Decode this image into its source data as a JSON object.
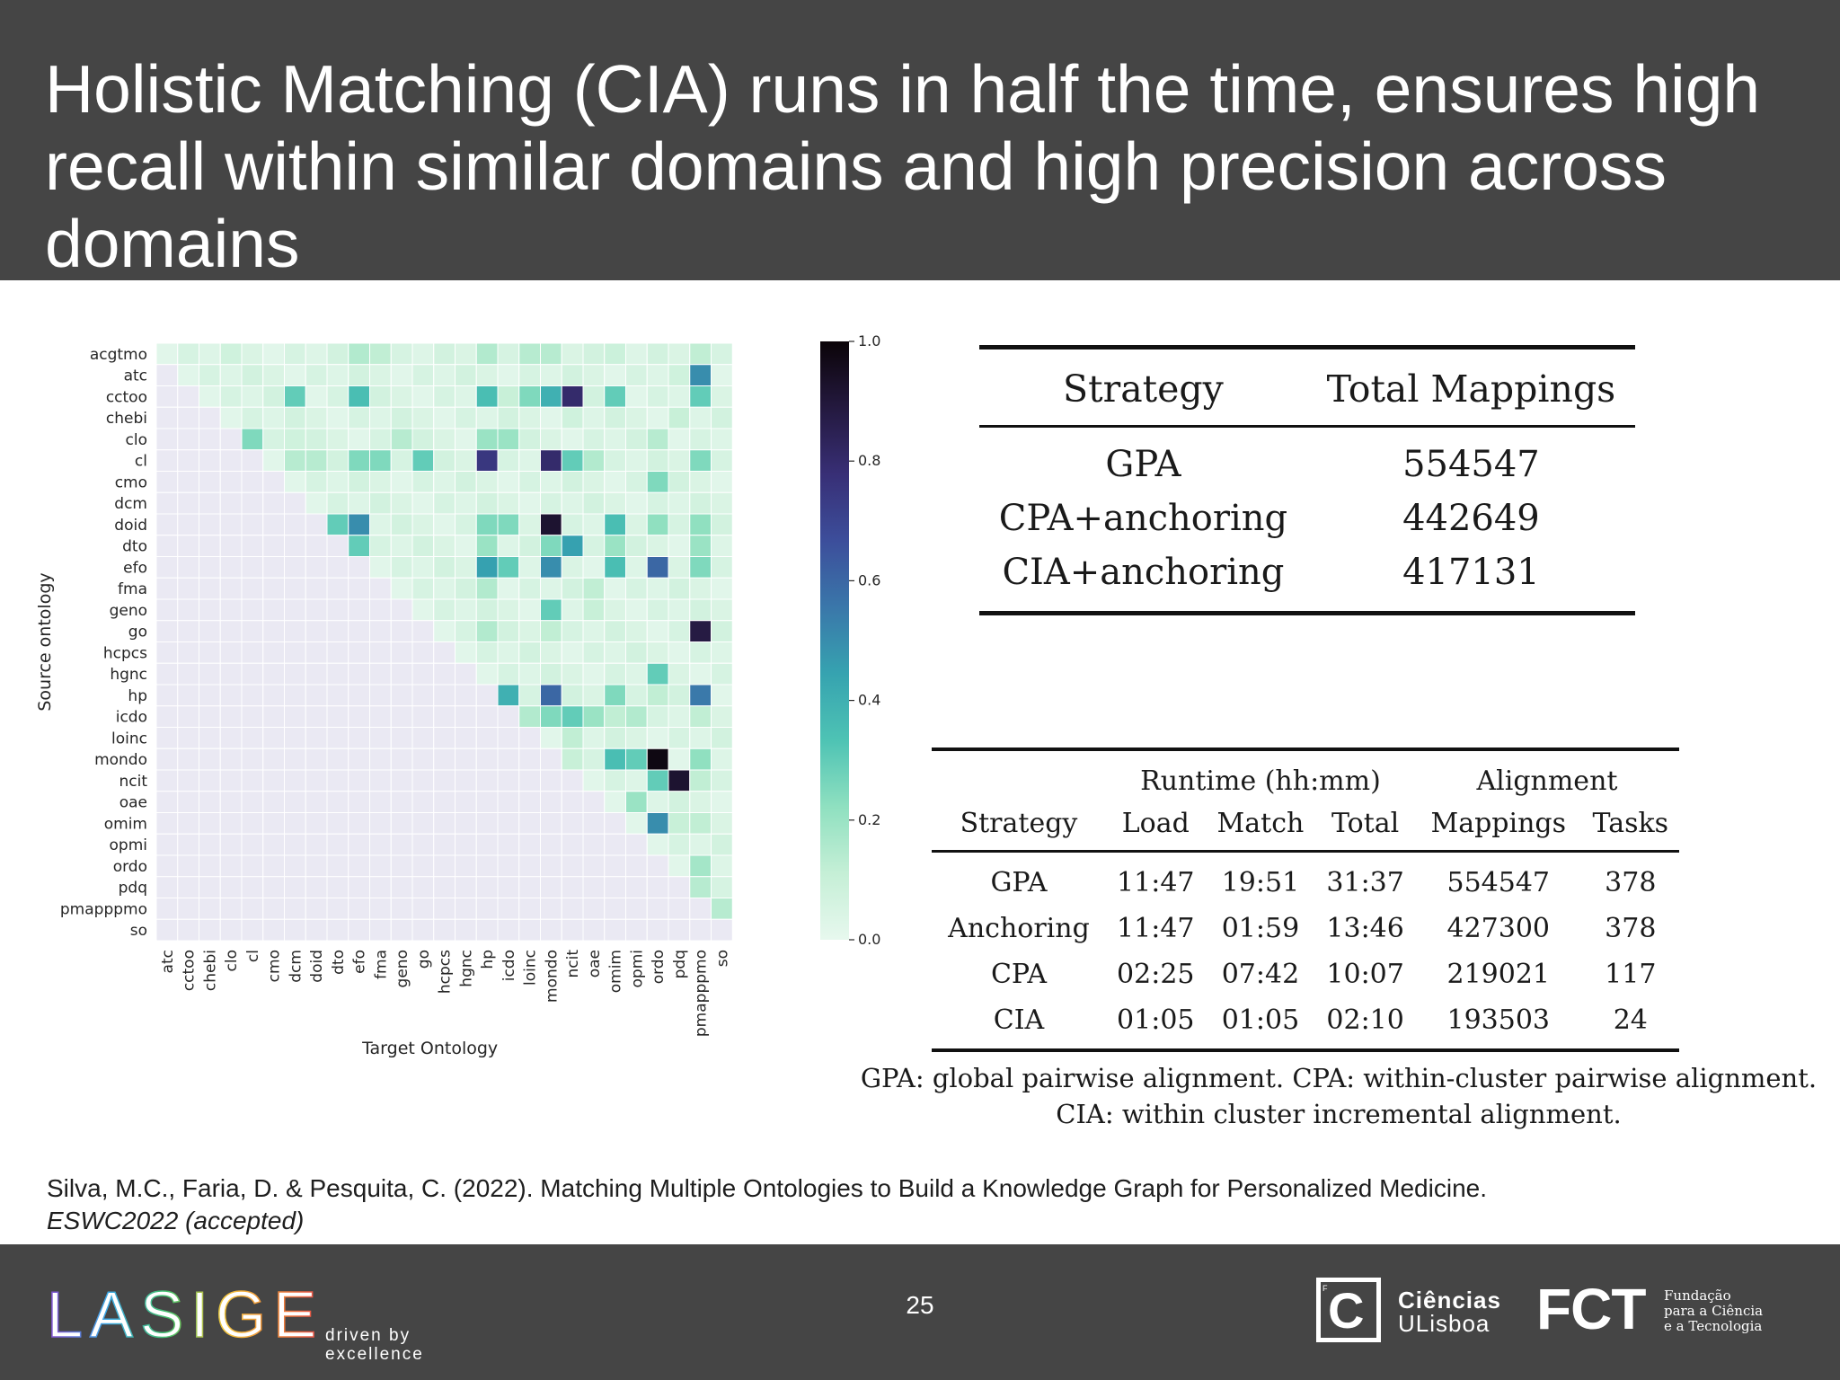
{
  "slide": {
    "title": "Holistic Matching (CIA) runs in half the time, ensures high recall within similar domains and high precision across domains",
    "page_number": "25"
  },
  "heatmap": {
    "type": "heatmap",
    "ylabel": "Source ontology",
    "xlabel": "Target Ontology",
    "rows": [
      "acgtmo",
      "atc",
      "cctoo",
      "chebi",
      "clo",
      "cl",
      "cmo",
      "dcm",
      "doid",
      "dto",
      "efo",
      "fma",
      "geno",
      "go",
      "hcpcs",
      "hgnc",
      "hp",
      "icdo",
      "loinc",
      "mondo",
      "ncit",
      "oae",
      "omim",
      "opmi",
      "ordo",
      "pdq",
      "pmapppmo",
      "so"
    ],
    "cols": [
      "atc",
      "cctoo",
      "chebi",
      "clo",
      "cl",
      "cmo",
      "dcm",
      "doid",
      "dto",
      "efo",
      "fma",
      "geno",
      "go",
      "hcpcs",
      "hgnc",
      "hp",
      "icdo",
      "loinc",
      "mondo",
      "ncit",
      "oae",
      "omim",
      "opmi",
      "ordo",
      "pdq",
      "pmapppmo",
      "so"
    ],
    "colorbar": {
      "min": 0.0,
      "max": 1.0,
      "ticks": [
        "0.0",
        "0.2",
        "0.4",
        "0.6",
        "0.8",
        "1.0"
      ]
    },
    "colormap": [
      "#e7f8ee",
      "#c5efd6",
      "#8fe0c0",
      "#4ec3b4",
      "#36a3b0",
      "#3a77aa",
      "#3c4e9b",
      "#382f76",
      "#24193f",
      "#0b0408"
    ],
    "empty_color": "#eae9f3",
    "highlights": [
      {
        "row": "acgtmo",
        "col": "efo",
        "value": 0.15
      },
      {
        "row": "acgtmo",
        "col": "fma",
        "value": 0.12
      },
      {
        "row": "acgtmo",
        "col": "hp",
        "value": 0.15
      },
      {
        "row": "acgtmo",
        "col": "loinc",
        "value": 0.14
      },
      {
        "row": "acgtmo",
        "col": "mondo",
        "value": 0.14
      },
      {
        "row": "acgtmo",
        "col": "clo",
        "value": 0.08
      },
      {
        "row": "acgtmo",
        "col": "omim",
        "value": 0.09
      },
      {
        "row": "acgtmo",
        "col": "oae",
        "value": 0.07
      },
      {
        "row": "acgtmo",
        "col": "pmapppmo",
        "value": 0.12
      },
      {
        "row": "atc",
        "col": "pmapppmo",
        "value": 0.5
      },
      {
        "row": "atc",
        "col": "pdq",
        "value": 0.08
      },
      {
        "row": "cctoo",
        "col": "dcm",
        "value": 0.3
      },
      {
        "row": "cctoo",
        "col": "efo",
        "value": 0.35
      },
      {
        "row": "cctoo",
        "col": "hp",
        "value": 0.35
      },
      {
        "row": "cctoo",
        "col": "loinc",
        "value": 0.25
      },
      {
        "row": "cctoo",
        "col": "mondo",
        "value": 0.4
      },
      {
        "row": "cctoo",
        "col": "ncit",
        "value": 0.8
      },
      {
        "row": "cctoo",
        "col": "omim",
        "value": 0.3
      },
      {
        "row": "cctoo",
        "col": "pmapppmo",
        "value": 0.3
      },
      {
        "row": "cctoo",
        "col": "icdo",
        "value": 0.1
      },
      {
        "row": "chebi",
        "col": "ncit",
        "value": 0.08
      },
      {
        "row": "chebi",
        "col": "pdq",
        "value": 0.1
      },
      {
        "row": "clo",
        "col": "cl",
        "value": 0.25
      },
      {
        "row": "clo",
        "col": "hp",
        "value": 0.2
      },
      {
        "row": "clo",
        "col": "icdo",
        "value": 0.2
      },
      {
        "row": "clo",
        "col": "geno",
        "value": 0.14
      },
      {
        "row": "clo",
        "col": "ordo",
        "value": 0.14
      },
      {
        "row": "clo",
        "col": "dcm",
        "value": 0.08
      },
      {
        "row": "cl",
        "col": "efo",
        "value": 0.25
      },
      {
        "row": "cl",
        "col": "fma",
        "value": 0.25
      },
      {
        "row": "cl",
        "col": "go",
        "value": 0.3
      },
      {
        "row": "cl",
        "col": "hp",
        "value": 0.75
      },
      {
        "row": "cl",
        "col": "mondo",
        "value": 0.8
      },
      {
        "row": "cl",
        "col": "ncit",
        "value": 0.3
      },
      {
        "row": "cl",
        "col": "oae",
        "value": 0.15
      },
      {
        "row": "cl",
        "col": "pmapppmo",
        "value": 0.25
      },
      {
        "row": "cl",
        "col": "dcm",
        "value": 0.14
      },
      {
        "row": "cl",
        "col": "doid",
        "value": 0.14
      },
      {
        "row": "cmo",
        "col": "ordo",
        "value": 0.25
      },
      {
        "row": "doid",
        "col": "dto",
        "value": 0.3
      },
      {
        "row": "doid",
        "col": "efo",
        "value": 0.5
      },
      {
        "row": "doid",
        "col": "hp",
        "value": 0.25
      },
      {
        "row": "doid",
        "col": "icdo",
        "value": 0.25
      },
      {
        "row": "doid",
        "col": "mondo",
        "value": 0.92
      },
      {
        "row": "doid",
        "col": "omim",
        "value": 0.35
      },
      {
        "row": "doid",
        "col": "ordo",
        "value": 0.22
      },
      {
        "row": "doid",
        "col": "pmapppmo",
        "value": 0.22
      },
      {
        "row": "dto",
        "col": "efo",
        "value": 0.3
      },
      {
        "row": "dto",
        "col": "hp",
        "value": 0.2
      },
      {
        "row": "dto",
        "col": "mondo",
        "value": 0.25
      },
      {
        "row": "dto",
        "col": "ncit",
        "value": 0.45
      },
      {
        "row": "dto",
        "col": "omim",
        "value": 0.2
      },
      {
        "row": "dto",
        "col": "pmapppmo",
        "value": 0.2
      },
      {
        "row": "efo",
        "col": "hp",
        "value": 0.45
      },
      {
        "row": "efo",
        "col": "icdo",
        "value": 0.3
      },
      {
        "row": "efo",
        "col": "mondo",
        "value": 0.5
      },
      {
        "row": "efo",
        "col": "omim",
        "value": 0.35
      },
      {
        "row": "efo",
        "col": "ordo",
        "value": 0.6
      },
      {
        "row": "efo",
        "col": "pmapppmo",
        "value": 0.25
      },
      {
        "row": "fma",
        "col": "hp",
        "value": 0.15
      },
      {
        "row": "fma",
        "col": "oae",
        "value": 0.12
      },
      {
        "row": "geno",
        "col": "mondo",
        "value": 0.3
      },
      {
        "row": "geno",
        "col": "oae",
        "value": 0.1
      },
      {
        "row": "go",
        "col": "pmapppmo",
        "value": 0.88
      },
      {
        "row": "go",
        "col": "hp",
        "value": 0.15
      },
      {
        "row": "go",
        "col": "mondo",
        "value": 0.12
      },
      {
        "row": "hgnc",
        "col": "ordo",
        "value": 0.3
      },
      {
        "row": "hp",
        "col": "icdo",
        "value": 0.4
      },
      {
        "row": "hp",
        "col": "mondo",
        "value": 0.6
      },
      {
        "row": "hp",
        "col": "omim",
        "value": 0.25
      },
      {
        "row": "hp",
        "col": "pmapppmo",
        "value": 0.55
      },
      {
        "row": "hp",
        "col": "ordo",
        "value": 0.12
      },
      {
        "row": "icdo",
        "col": "mondo",
        "value": 0.25
      },
      {
        "row": "icdo",
        "col": "ncit",
        "value": 0.3
      },
      {
        "row": "icdo",
        "col": "oae",
        "value": 0.2
      },
      {
        "row": "icdo",
        "col": "loinc",
        "value": 0.15
      },
      {
        "row": "icdo",
        "col": "omim",
        "value": 0.12
      },
      {
        "row": "icdo",
        "col": "opmi",
        "value": 0.15
      },
      {
        "row": "icdo",
        "col": "pmapppmo",
        "value": 0.12
      },
      {
        "row": "loinc",
        "col": "ncit",
        "value": 0.12
      },
      {
        "row": "mondo",
        "col": "omim",
        "value": 0.35
      },
      {
        "row": "mondo",
        "col": "opmi",
        "value": 0.3
      },
      {
        "row": "mondo",
        "col": "ordo",
        "value": 0.98
      },
      {
        "row": "mondo",
        "col": "pmapppmo",
        "value": 0.22
      },
      {
        "row": "mondo",
        "col": "ncit",
        "value": 0.1
      },
      {
        "row": "ncit",
        "col": "ordo",
        "value": 0.3
      },
      {
        "row": "ncit",
        "col": "pdq",
        "value": 0.92
      },
      {
        "row": "ncit",
        "col": "pmapppmo",
        "value": 0.12
      },
      {
        "row": "oae",
        "col": "opmi",
        "value": 0.2
      },
      {
        "row": "omim",
        "col": "ordo",
        "value": 0.5
      },
      {
        "row": "omim",
        "col": "pmapppmo",
        "value": 0.12
      },
      {
        "row": "omim",
        "col": "pdq",
        "value": 0.1
      },
      {
        "row": "ordo",
        "col": "pmapppmo",
        "value": 0.18
      },
      {
        "row": "pdq",
        "col": "pmapppmo",
        "value": 0.14
      },
      {
        "row": "pmapppmo",
        "col": "so",
        "value": 0.14
      }
    ]
  },
  "table1": {
    "headers": [
      "Strategy",
      "Total Mappings"
    ],
    "rows": [
      [
        "GPA",
        "554547"
      ],
      [
        "CPA+anchoring",
        "442649"
      ],
      [
        "CIA+anchoring",
        "417131"
      ]
    ]
  },
  "table2": {
    "group_headers": {
      "runtime": "Runtime (hh:mm)",
      "alignment": "Alignment"
    },
    "headers": [
      "Strategy",
      "Load",
      "Match",
      "Total",
      "Mappings",
      "Tasks"
    ],
    "rows": [
      [
        "GPA",
        "11:47",
        "19:51",
        "31:37",
        "554547",
        "378"
      ],
      [
        "Anchoring",
        "11:47",
        "01:59",
        "13:46",
        "427300",
        "378"
      ],
      [
        "CPA",
        "02:25",
        "07:42",
        "10:07",
        "219021",
        "117"
      ],
      [
        "CIA",
        "01:05",
        "01:05",
        "02:10",
        "193503",
        "24"
      ]
    ]
  },
  "caption": {
    "line1": "GPA: global pairwise alignment. CPA: within-cluster pairwise alignment.",
    "line2": "CIA: within cluster incremental alignment."
  },
  "reference": {
    "citation": "Silva, M.C., Faria, D. & Pesquita, C. (2022). Matching Multiple Ontologies to Build a Knowledge Graph for Personalized Medicine.",
    "venue": "ESWC2022 (accepted)"
  },
  "footer": {
    "lasige_logo": "LASIGE",
    "lasige_tagline_1": "driven by",
    "lasige_tagline_2": "excellence",
    "ciencias_mark": "C",
    "ciencias_mark_small": "F",
    "ciencias_name": "Ciências",
    "ciencias_sub": "ULisboa",
    "fct_logo": "FCT",
    "fct_line1": "Fundação",
    "fct_line2": "para a Ciência",
    "fct_line3": "e a Tecnologia",
    "lasige_colors": [
      "#8a4fd0",
      "#3da9e6",
      "#46c16a",
      "#f2c53d",
      "#f08a3a",
      "#e94b4b"
    ]
  }
}
